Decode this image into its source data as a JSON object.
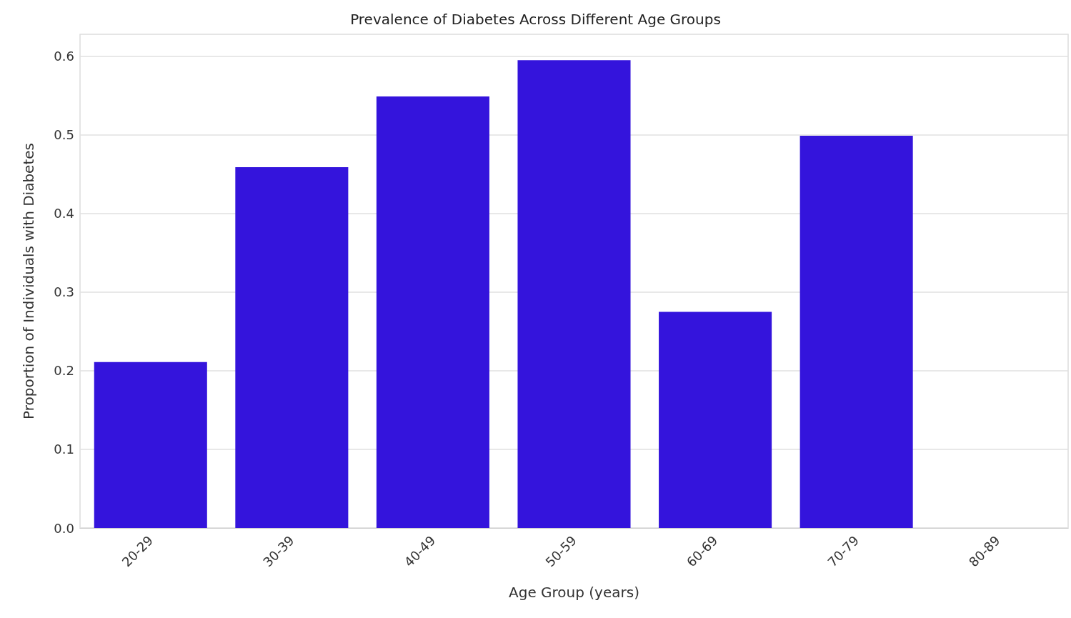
{
  "chart_data": {
    "type": "bar",
    "title": "Prevalence of Diabetes Across Different Age Groups",
    "xlabel": "Age Group (years)",
    "ylabel": "Proportion of Individuals with Diabetes",
    "categories": [
      "20-29",
      "30-39",
      "40-49",
      "50-59",
      "60-69",
      "70-79",
      "80-89"
    ],
    "values": [
      0.211,
      0.459,
      0.549,
      0.595,
      0.275,
      0.499,
      0
    ],
    "color": "#3414dc",
    "ylim": [
      0,
      0.628
    ],
    "yticks": [
      {
        "value": 0,
        "label": "0.0"
      },
      0.1,
      0.2,
      0.3,
      0.4,
      0.5,
      0.6
    ],
    "grid": "y"
  }
}
